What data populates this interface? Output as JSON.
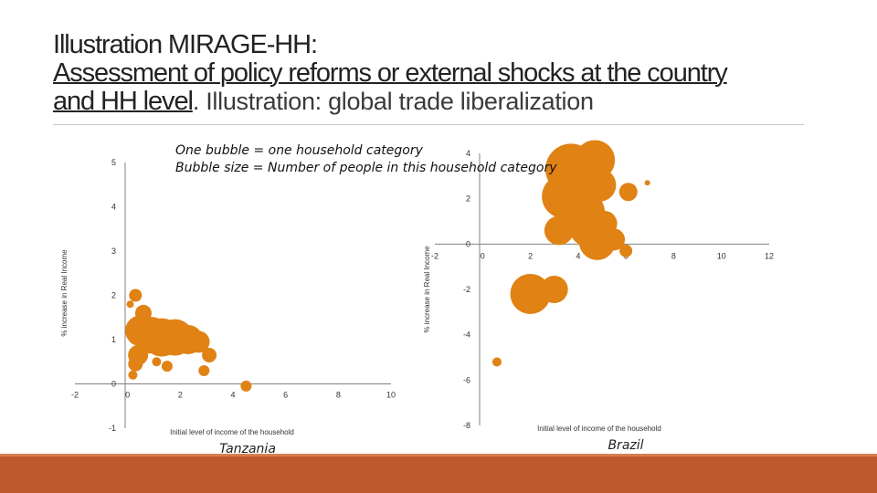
{
  "title": {
    "line1": "Illustration MIRAGE-HH:",
    "line2": "Assessment of policy reforms or external shocks at the country",
    "line3_underlined": "and HH level",
    "line3_rest": ". Illustration: global trade liberalization"
  },
  "notes": {
    "line1": "One bubble = one household category",
    "line2": "Bubble size = Number of people in this household category"
  },
  "colors": {
    "bubble": "#e08214",
    "accent_bar": "#bf582a",
    "axis": "#808080"
  },
  "chart_data": [
    {
      "type": "scatter",
      "name": "Tanzania",
      "caption": "Tanzania",
      "xlabel": "Initial level of income of the household",
      "ylabel": "% increase in Real Income",
      "xlim": [
        -2,
        10
      ],
      "ylim": [
        -1,
        5
      ],
      "xticks": [
        "-2",
        "0",
        "2",
        "4",
        "6",
        "8",
        "10"
      ],
      "yticks": [
        "-1",
        "0",
        "1",
        "2",
        "3",
        "4",
        "5"
      ],
      "points": [
        {
          "x": 0.5,
          "y": 1.2,
          "r": 17
        },
        {
          "x": 0.9,
          "y": 1.1,
          "r": 20
        },
        {
          "x": 1.3,
          "y": 1.05,
          "r": 21
        },
        {
          "x": 1.8,
          "y": 1.05,
          "r": 20
        },
        {
          "x": 2.3,
          "y": 1.0,
          "r": 16
        },
        {
          "x": 2.7,
          "y": 0.95,
          "r": 12
        },
        {
          "x": 0.4,
          "y": 0.65,
          "r": 11
        },
        {
          "x": 0.6,
          "y": 1.6,
          "r": 9
        },
        {
          "x": 0.3,
          "y": 0.45,
          "r": 8
        },
        {
          "x": 0.3,
          "y": 2.0,
          "r": 7
        },
        {
          "x": 3.1,
          "y": 0.65,
          "r": 8
        },
        {
          "x": 2.9,
          "y": 0.3,
          "r": 6
        },
        {
          "x": 4.5,
          "y": -0.05,
          "r": 6
        },
        {
          "x": 0.2,
          "y": 0.2,
          "r": 5
        },
        {
          "x": 0.1,
          "y": 1.8,
          "r": 4
        },
        {
          "x": 1.5,
          "y": 0.4,
          "r": 6
        },
        {
          "x": 1.1,
          "y": 0.5,
          "r": 5
        }
      ]
    },
    {
      "type": "scatter",
      "name": "Brazil",
      "caption": "Brazil",
      "xlabel": "Initial level of income of the household",
      "ylabel": "% increase in Real Income",
      "xlim": [
        -2,
        12
      ],
      "ylim": [
        -8,
        4
      ],
      "xticks": [
        "-2",
        "0",
        "2",
        "4",
        "6",
        "8",
        "10",
        "12"
      ],
      "yticks": [
        "-8",
        "-6",
        "-4",
        "-2",
        "0",
        "2",
        "4"
      ],
      "points": [
        {
          "x": 3.7,
          "y": 3.3,
          "r": 28
        },
        {
          "x": 4.7,
          "y": 3.7,
          "r": 22
        },
        {
          "x": 4.9,
          "y": 2.6,
          "r": 18
        },
        {
          "x": 3.4,
          "y": 2.1,
          "r": 24
        },
        {
          "x": 4.2,
          "y": 1.4,
          "r": 24
        },
        {
          "x": 3.2,
          "y": 0.6,
          "r": 16
        },
        {
          "x": 4.4,
          "y": 0.7,
          "r": 20
        },
        {
          "x": 4.8,
          "y": 0.1,
          "r": 20
        },
        {
          "x": 5.1,
          "y": 0.9,
          "r": 14
        },
        {
          "x": 6.1,
          "y": 2.3,
          "r": 10
        },
        {
          "x": 5.5,
          "y": 0.2,
          "r": 12
        },
        {
          "x": 6.0,
          "y": -0.3,
          "r": 7
        },
        {
          "x": 2.0,
          "y": -2.2,
          "r": 22
        },
        {
          "x": 3.0,
          "y": -2.0,
          "r": 15
        },
        {
          "x": 0.6,
          "y": -5.2,
          "r": 5
        },
        {
          "x": 6.9,
          "y": 2.7,
          "r": 3
        }
      ]
    }
  ]
}
